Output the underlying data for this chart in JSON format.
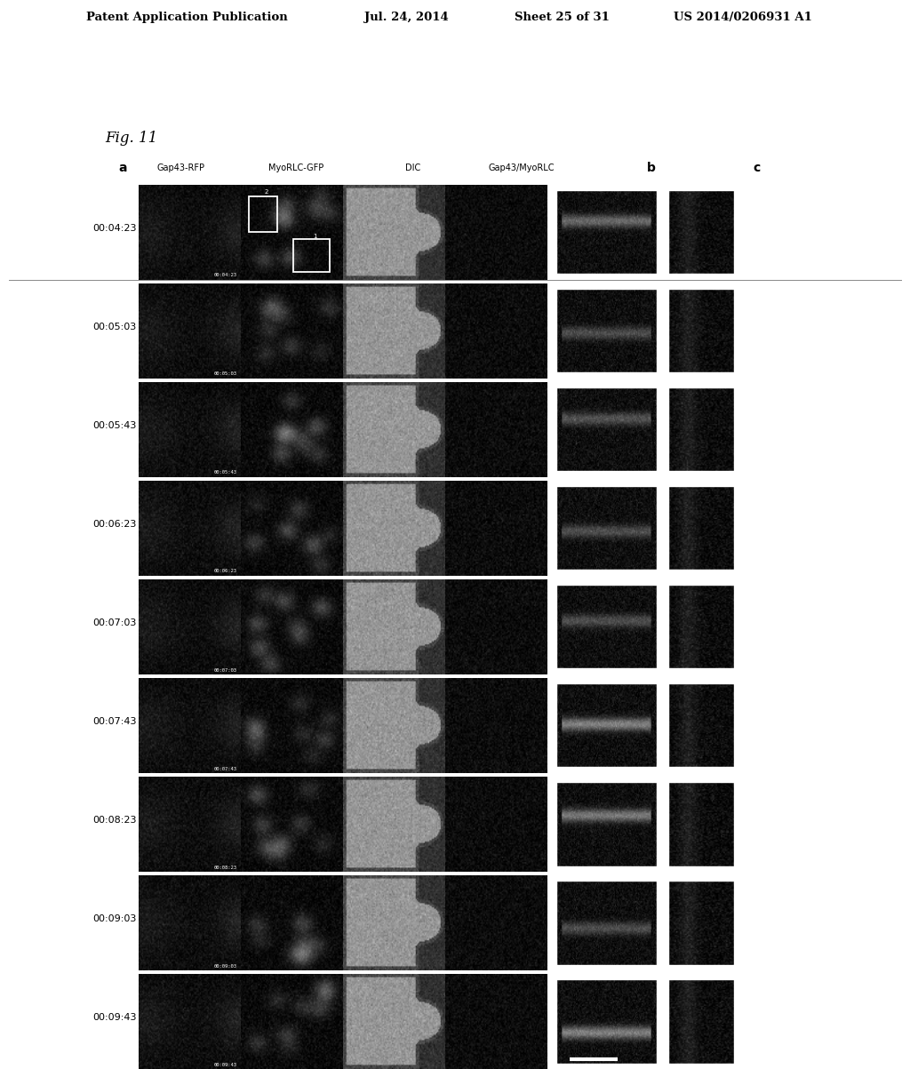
{
  "header_text": "Patent Application Publication",
  "header_date": "Jul. 24, 2014",
  "header_sheet": "Sheet 25 of 31",
  "header_patent": "US 2014/0206931 A1",
  "fig_label": "Fig. 11",
  "col_labels_a": [
    "Gap43-RFP",
    "MyoRLC-GFP",
    "DIC",
    "Gap43/MyoRLC"
  ],
  "col_label_b": "b",
  "col_label_c": "c",
  "section_a_label": "a",
  "time_labels": [
    "00:04:23",
    "00:05:03",
    "00:05:43",
    "00:06:23",
    "00:07:03",
    "00:07:43",
    "00:08:23",
    "00:09:03",
    "00:09:43"
  ],
  "bg_color": "#ffffff",
  "num_rows": 9,
  "fig_width": 10.24,
  "fig_height": 13.2
}
